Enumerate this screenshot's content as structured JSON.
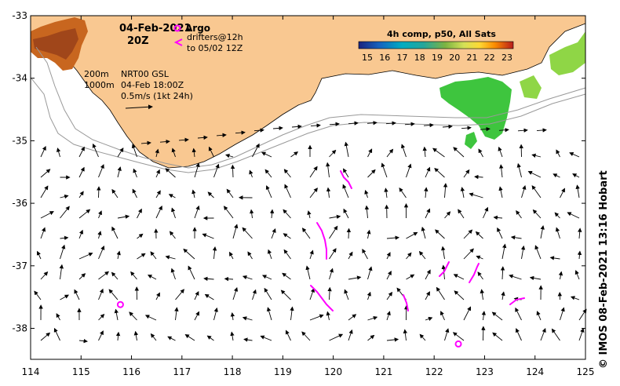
{
  "header": {
    "date": "04-Feb-2021",
    "time": "20Z"
  },
  "legend": {
    "argo_label": "Argo",
    "drifters_line1": "drifters@12h",
    "drifters_line2": "to 05/02 12Z",
    "colorbar_title": "4h comp, p50, All Sats",
    "colorbar_ticks": [
      "15",
      "16",
      "17",
      "18",
      "19",
      "20",
      "21",
      "22",
      "23"
    ],
    "isobath_200": "200m",
    "isobath_1000": "1000m",
    "product": "NRT00 GSL",
    "product_time": "04-Feb 18:00Z",
    "scale_label": "0.5m/s (1kt 24h)"
  },
  "axes": {
    "lon_ticks": [
      "114",
      "115",
      "116",
      "117",
      "118",
      "119",
      "120",
      "121",
      "122",
      "123",
      "124",
      "125"
    ],
    "lat_ticks": [
      "-33",
      "-34",
      "-35",
      "-36",
      "-37",
      "-38"
    ]
  },
  "credit": "© IMOS 08-Feb-2021 13:16 Hobart",
  "colors": {
    "land": "#f9c891",
    "argo": "#ff00ff",
    "drifter": "#ff00ff",
    "isobath": "#999999"
  },
  "argo_floats": [
    {
      "lon": 115.78,
      "lat": -37.62
    },
    {
      "lon": 122.48,
      "lat": -38.25
    }
  ]
}
